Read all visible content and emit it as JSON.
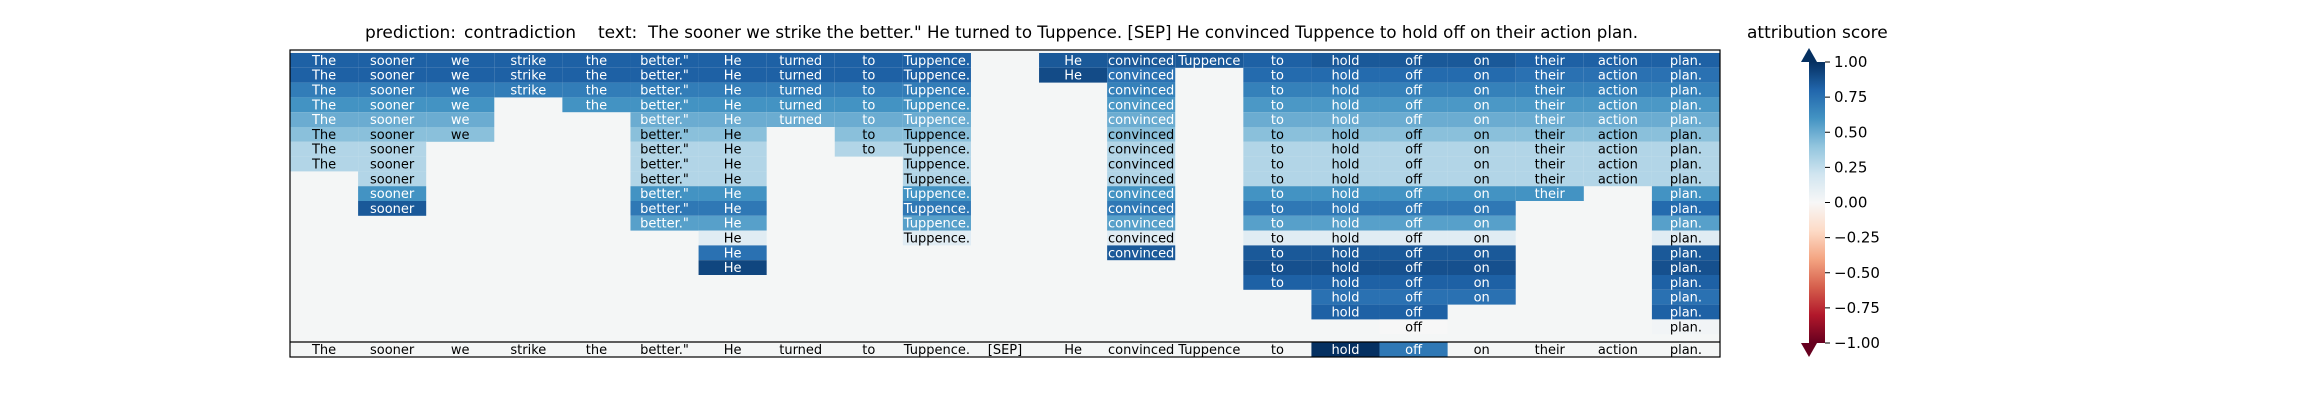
{
  "chart_data": {
    "type": "heatmap",
    "title": {
      "prediction_label": "prediction:",
      "prediction_value": "contradiction",
      "text_label": "text:",
      "text_value": "The sooner we strike the better.\" He turned to Tuppence. [SEP] He convinced Tuppence to hold off on their action plan."
    },
    "tokens": [
      "The",
      "sooner",
      "we",
      "strike",
      "the",
      "better.\"",
      "He",
      "turned",
      "to",
      "Tuppence.",
      "[SEP]",
      "He",
      "convinced",
      "Tuppence",
      "to",
      "hold",
      "off",
      "on",
      "their",
      "action",
      "plan."
    ],
    "rows": [
      [
        0.82,
        0.82,
        0.82,
        0.82,
        0.82,
        0.82,
        0.82,
        0.82,
        0.82,
        0.82,
        null,
        0.85,
        0.85,
        0.85,
        0.82,
        0.85,
        0.85,
        0.85,
        0.82,
        0.82,
        0.82
      ],
      [
        0.82,
        0.82,
        0.82,
        0.82,
        0.82,
        0.82,
        0.82,
        0.82,
        0.82,
        0.82,
        null,
        0.9,
        0.75,
        null,
        0.78,
        0.78,
        0.78,
        0.78,
        0.75,
        0.75,
        0.75
      ],
      [
        0.7,
        0.7,
        0.7,
        0.7,
        0.7,
        0.7,
        0.7,
        0.7,
        0.7,
        0.7,
        null,
        null,
        0.68,
        null,
        0.68,
        0.68,
        0.68,
        0.68,
        0.68,
        0.68,
        0.68
      ],
      [
        0.6,
        0.6,
        0.6,
        null,
        0.6,
        0.6,
        0.6,
        0.6,
        0.6,
        0.6,
        null,
        null,
        0.58,
        null,
        0.58,
        0.58,
        0.58,
        0.58,
        0.58,
        0.58,
        0.58
      ],
      [
        0.5,
        0.5,
        0.5,
        null,
        null,
        0.5,
        0.5,
        0.5,
        0.5,
        0.5,
        null,
        null,
        0.5,
        null,
        0.5,
        0.5,
        0.5,
        0.5,
        0.5,
        0.5,
        0.5
      ],
      [
        0.42,
        0.42,
        0.42,
        null,
        null,
        0.42,
        0.42,
        null,
        0.42,
        0.42,
        null,
        null,
        0.42,
        null,
        0.42,
        0.42,
        0.42,
        0.42,
        0.42,
        0.42,
        0.42
      ],
      [
        0.3,
        0.3,
        null,
        null,
        null,
        0.3,
        0.3,
        null,
        0.3,
        0.3,
        null,
        null,
        0.3,
        null,
        0.3,
        0.3,
        0.3,
        0.3,
        0.3,
        0.3,
        0.3
      ],
      [
        0.3,
        0.3,
        null,
        null,
        null,
        0.3,
        0.3,
        null,
        null,
        0.3,
        null,
        null,
        0.3,
        null,
        0.3,
        0.3,
        0.3,
        0.3,
        0.3,
        0.3,
        0.3
      ],
      [
        null,
        0.3,
        null,
        null,
        null,
        0.3,
        0.3,
        null,
        null,
        0.3,
        null,
        null,
        0.3,
        null,
        0.3,
        0.3,
        0.3,
        0.3,
        0.3,
        0.3,
        0.3
      ],
      [
        null,
        0.6,
        null,
        null,
        null,
        0.6,
        0.6,
        null,
        null,
        0.6,
        null,
        null,
        0.6,
        null,
        0.6,
        0.6,
        0.6,
        0.6,
        0.6,
        null,
        0.6
      ],
      [
        null,
        0.85,
        null,
        null,
        null,
        0.72,
        0.72,
        null,
        null,
        0.72,
        null,
        null,
        0.72,
        null,
        0.72,
        0.72,
        0.72,
        0.72,
        null,
        null,
        0.78
      ],
      [
        null,
        null,
        null,
        null,
        null,
        0.55,
        0.55,
        null,
        null,
        0.55,
        null,
        null,
        0.55,
        null,
        0.55,
        0.55,
        0.55,
        0.55,
        null,
        null,
        0.55
      ],
      [
        null,
        null,
        null,
        null,
        null,
        null,
        0.12,
        null,
        null,
        0.12,
        null,
        null,
        0.12,
        null,
        0.12,
        0.12,
        0.12,
        0.12,
        null,
        null,
        0.12
      ],
      [
        null,
        null,
        null,
        null,
        null,
        null,
        0.75,
        null,
        null,
        null,
        null,
        null,
        0.85,
        null,
        0.85,
        0.85,
        0.85,
        0.85,
        null,
        null,
        0.85
      ],
      [
        null,
        null,
        null,
        null,
        null,
        null,
        0.92,
        null,
        null,
        null,
        null,
        null,
        null,
        null,
        0.88,
        0.88,
        0.88,
        0.88,
        null,
        null,
        0.88
      ],
      [
        null,
        null,
        null,
        null,
        null,
        null,
        null,
        null,
        null,
        null,
        null,
        null,
        null,
        null,
        0.82,
        0.82,
        0.82,
        0.82,
        null,
        null,
        0.82
      ],
      [
        null,
        null,
        null,
        null,
        null,
        null,
        null,
        null,
        null,
        null,
        null,
        null,
        null,
        null,
        null,
        0.75,
        0.75,
        0.75,
        null,
        null,
        0.75
      ],
      [
        null,
        null,
        null,
        null,
        null,
        null,
        null,
        null,
        null,
        null,
        null,
        null,
        null,
        null,
        null,
        0.82,
        0.82,
        null,
        null,
        null,
        0.82
      ],
      [
        null,
        null,
        null,
        null,
        null,
        null,
        null,
        null,
        null,
        null,
        null,
        null,
        null,
        null,
        null,
        null,
        0.0,
        null,
        null,
        null,
        0.03
      ]
    ],
    "bottom_row": [
      0,
      0,
      0,
      0,
      0,
      0,
      0,
      0,
      0,
      0,
      0,
      0,
      0,
      0,
      0,
      1.0,
      0.72,
      0,
      0,
      0,
      0
    ],
    "colorbar": {
      "label": "attribution score",
      "range": [
        -1,
        1
      ],
      "ticks": [
        "1.00",
        "0.75",
        "0.50",
        "0.25",
        "0.00",
        "−0.25",
        "−0.50",
        "−0.75",
        "−1.00"
      ],
      "colormap": "RdBu",
      "extend": "both"
    },
    "grid": false
  }
}
